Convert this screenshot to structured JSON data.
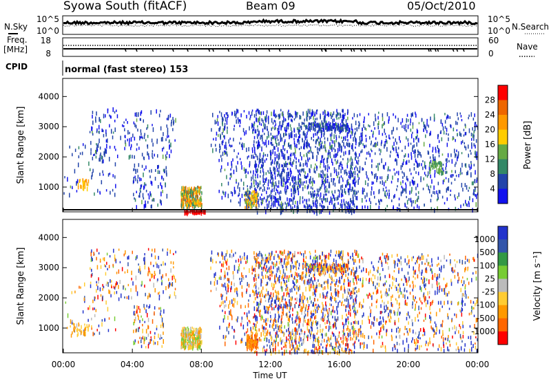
{
  "header": {
    "station": "Syowa South (fitACF)",
    "beam": "Beam 09",
    "date": "05/Oct/2010"
  },
  "noise_panel": {
    "left_label": "N.Sky",
    "right_label": "N.Search",
    "ticks_left": [
      "10^5",
      "10^0"
    ],
    "ticks_right": [
      "10^5",
      "10^0"
    ]
  },
  "freq_panel": {
    "left_label_1": "Freq.",
    "left_label_2": "[MHz]",
    "right_label": "Nave",
    "ticks_left": [
      "18",
      "8"
    ],
    "ticks_right": [
      "60",
      "0"
    ]
  },
  "cpid": {
    "label": "CPID",
    "mode": "normal (fast stereo) 153"
  },
  "power_scale": {
    "label": "Power [dB]",
    "ticks": [
      "28",
      "24",
      "20",
      "16",
      "12",
      "8",
      "4"
    ],
    "colors": [
      "#ff0000",
      "#ee6600",
      "#ff9900",
      "#ffcc00",
      "#66aa44",
      "#338866",
      "#2244aa",
      "#1111ee"
    ]
  },
  "velocity_scale": {
    "label": "Velocity [m s⁻¹]",
    "ticks": [
      "1000",
      "500",
      "100",
      "25",
      "-25",
      "-100",
      "-500",
      "-1000"
    ],
    "colors": [
      "#2233cc",
      "#3355aa",
      "#339944",
      "#77cc33",
      "#bbbbbb",
      "#ffcc33",
      "#ff9900",
      "#ff6600",
      "#ff0000"
    ]
  },
  "chart_data": [
    {
      "type": "heatmap",
      "panel": "power",
      "ylabel": "Slant Range [km]",
      "xlabel": "Time UT",
      "xlim": [
        "00:00",
        "24:00"
      ],
      "ylim": [
        180,
        4600
      ],
      "x_ticks": [
        "00:00",
        "04:00",
        "08:00",
        "12:00",
        "16:00",
        "20:00",
        "00:00"
      ],
      "y_ticks": [
        "1000",
        "2000",
        "3000",
        "4000"
      ],
      "patches": [
        {
          "t": [
            0.8,
            1.4
          ],
          "r": [
            1000,
            1300
          ],
          "level": "20-24 dB"
        },
        {
          "t": [
            6.8,
            8.0
          ],
          "r": [
            400,
            1050
          ],
          "level": "12-24 dB"
        },
        {
          "t": [
            7.0,
            8.2
          ],
          "r": [
            180,
            260
          ],
          "level": "28 dB"
        },
        {
          "t": [
            10.5,
            11.3
          ],
          "r": [
            350,
            900
          ],
          "level": "8-24 dB"
        },
        {
          "t": [
            11.0,
            24.0
          ],
          "r": [
            200,
            3600
          ],
          "level": "4-8 dB"
        },
        {
          "t": [
            21.3,
            22.0
          ],
          "r": [
            1500,
            1900
          ],
          "level": "8-16 dB"
        }
      ]
    },
    {
      "type": "heatmap",
      "panel": "velocity",
      "ylabel": "Slant Range [km]",
      "xlabel": "Time UT",
      "xlim": [
        "00:00",
        "24:00"
      ],
      "ylim": [
        180,
        4600
      ],
      "x_ticks": [
        "00:00",
        "04:00",
        "08:00",
        "12:00",
        "16:00",
        "20:00",
        "00:00"
      ],
      "y_ticks": [
        "1000",
        "2000",
        "3000",
        "4000"
      ],
      "patches": [
        {
          "t": [
            6.8,
            8.0
          ],
          "r": [
            400,
            1050
          ],
          "level": "-100 to 25 m/s"
        },
        {
          "t": [
            10.6,
            11.2
          ],
          "r": [
            350,
            800
          ],
          "level": "-500 to -100 m/s"
        },
        {
          "t": [
            11.0,
            24.0
          ],
          "r": [
            200,
            3600
          ],
          "level": "-1000 to 1000 m/s"
        }
      ]
    }
  ]
}
